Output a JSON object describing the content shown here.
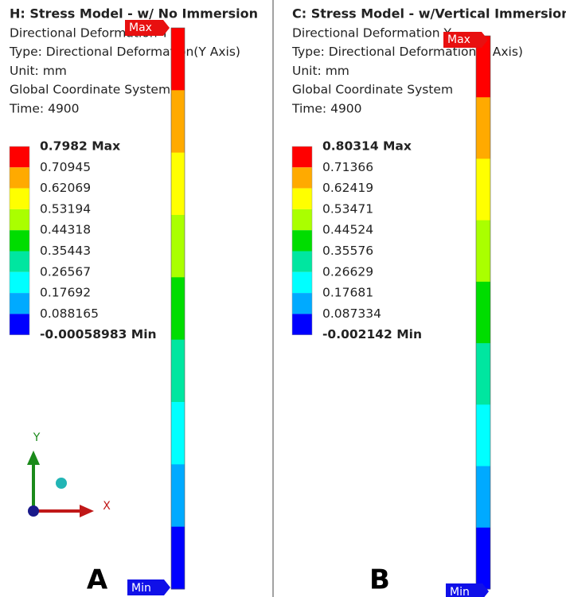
{
  "panels": [
    {
      "title": "H: Stress  Model - w/ No Immersion",
      "lines": [
        "Directional Deformation Y",
        "Type: Directional Deformation(Y Axis)",
        "Unit: mm",
        "Global Coordinate System",
        "Time: 4900"
      ],
      "legend": [
        "0.7982 Max",
        "0.70945",
        "0.62069",
        "0.53194",
        "0.44318",
        "0.35443",
        "0.26567",
        "0.17692",
        "0.088165",
        "-0.00058983 Min"
      ],
      "max_tag": "Max",
      "min_tag": "Min",
      "label": "A",
      "axes": {
        "y": "Y",
        "x": "X"
      }
    },
    {
      "title": "C: Stress Model - w/Vertical Immersion",
      "lines": [
        "Directional Deformation Y",
        "Type: Directional Deformation(Y Axis)",
        "Unit: mm",
        "Global Coordinate System",
        "Time: 4900"
      ],
      "legend": [
        "0.80314 Max",
        "0.71366",
        "0.62419",
        "0.53471",
        "0.44524",
        "0.35576",
        "0.26629",
        "0.17681",
        "0.087334",
        "-0.002142 Min"
      ],
      "max_tag": "Max",
      "min_tag": "Min",
      "label": "B"
    }
  ],
  "colors": [
    "#ff0000",
    "#ffaa00",
    "#ffff00",
    "#aaff00",
    "#00dd00",
    "#00e6a0",
    "#00ffff",
    "#00aaff",
    "#0000ff"
  ]
}
